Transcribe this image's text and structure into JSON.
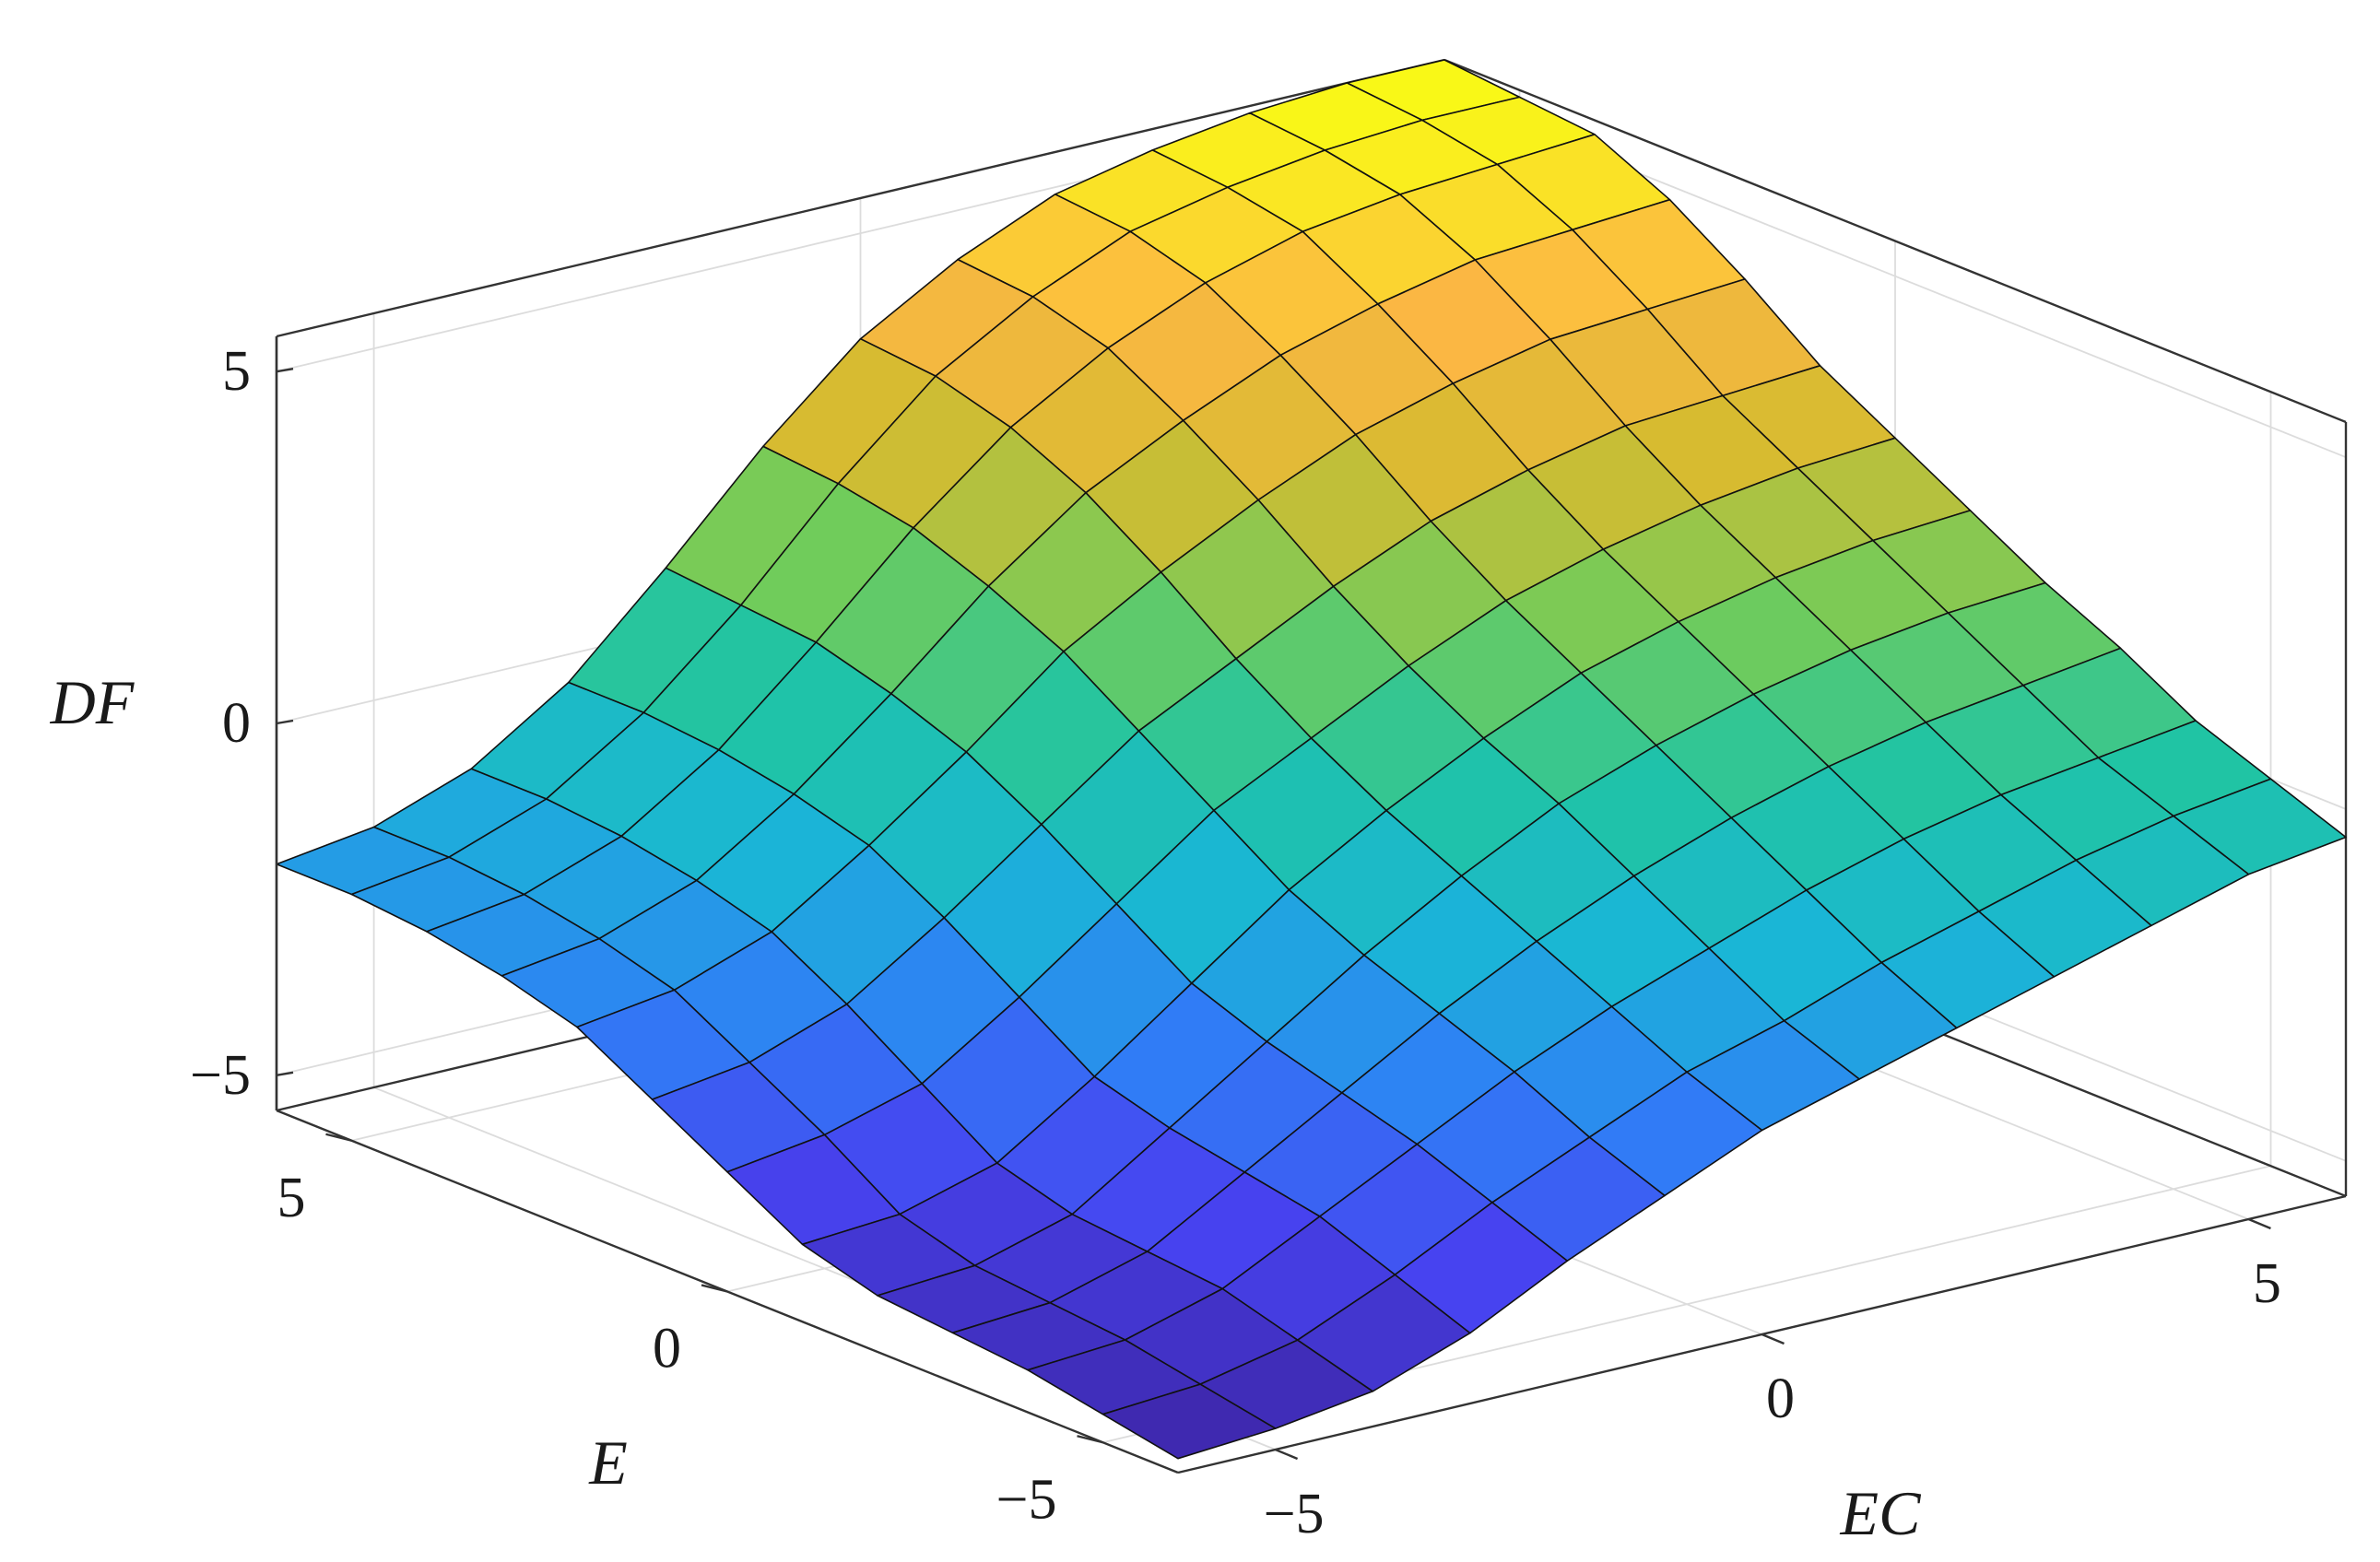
{
  "chart_data": {
    "type": "surface",
    "xlabel": "EC",
    "ylabel": "E",
    "zlabel": "DF",
    "xlim": [
      -6,
      6
    ],
    "ylim": [
      -6,
      6
    ],
    "zlim": [
      -5.5,
      5.5
    ],
    "x_ticks": [
      {
        "value": -5,
        "label": "−5"
      },
      {
        "value": 0,
        "label": "0"
      },
      {
        "value": 5,
        "label": "5"
      }
    ],
    "y_ticks": [
      {
        "value": -5,
        "label": "−5"
      },
      {
        "value": 0,
        "label": "0"
      },
      {
        "value": 5,
        "label": "5"
      }
    ],
    "z_ticks": [
      {
        "value": -5,
        "label": "−5"
      },
      {
        "value": 0,
        "label": "0"
      },
      {
        "value": 5,
        "label": "5"
      }
    ],
    "grid": true,
    "colormap": [
      "#3e26a8",
      "#4743f0",
      "#2f7ff6",
      "#1ab6d6",
      "#20c4a4",
      "#72cc5a",
      "#d6bb30",
      "#fcb744",
      "#f9fb15"
    ],
    "x": [
      -6,
      -5,
      -4,
      -3,
      -2,
      -1,
      0,
      1,
      2,
      3,
      4,
      5,
      6
    ],
    "y": [
      -6,
      -5,
      -4,
      -3,
      -2,
      -1,
      0,
      1,
      2,
      3,
      4,
      5,
      6
    ],
    "z_rows_by_E": [
      [
        -5.3,
        -5.2,
        -5.0,
        -4.5,
        -3.8,
        -3.2,
        -2.6,
        -2.2,
        -1.8,
        -1.4,
        -1.0,
        -0.6,
        -0.4
      ],
      [
        -5.1,
        -5.0,
        -4.7,
        -4.1,
        -3.4,
        -2.8,
        -2.2,
        -1.8,
        -1.3,
        -0.9,
        -0.5,
        -0.2,
        0.0
      ],
      [
        -4.9,
        -4.8,
        -4.4,
        -3.7,
        -3.0,
        -2.3,
        -1.7,
        -1.2,
        -0.7,
        -0.3,
        0.0,
        0.2,
        0.4
      ],
      [
        -4.8,
        -4.7,
        -4.3,
        -3.5,
        -2.7,
        -1.9,
        -1.2,
        -0.6,
        -0.1,
        0.3,
        0.6,
        0.8,
        1.0
      ],
      [
        -4.7,
        -4.6,
        -4.2,
        -3.3,
        -2.4,
        -1.5,
        -0.7,
        0.0,
        0.5,
        0.9,
        1.2,
        1.4,
        1.5
      ],
      [
        -4.4,
        -4.3,
        -3.9,
        -3.0,
        -2.0,
        -1.0,
        -0.2,
        0.5,
        1.1,
        1.5,
        1.8,
        2.0,
        2.1
      ],
      [
        -3.8,
        -3.6,
        -3.2,
        -2.3,
        -1.3,
        -0.3,
        0.4,
        1.1,
        1.7,
        2.1,
        2.4,
        2.6,
        2.7
      ],
      [
        -3.2,
        -3.0,
        -2.5,
        -1.6,
        -0.6,
        0.4,
        1.1,
        1.8,
        2.4,
        2.8,
        3.1,
        3.2,
        3.3
      ],
      [
        -2.6,
        -2.4,
        -1.9,
        -1.0,
        0.0,
        1.1,
        1.9,
        2.6,
        3.2,
        3.6,
        3.9,
        4.0,
        4.1
      ],
      [
        -2.3,
        -2.1,
        -1.6,
        -0.7,
        0.4,
        1.6,
        2.6,
        3.3,
        3.9,
        4.3,
        4.6,
        4.7,
        4.8
      ],
      [
        -2.1,
        -1.9,
        -1.4,
        -0.5,
        0.7,
        2.0,
        3.1,
        3.9,
        4.5,
        4.9,
        5.1,
        5.2,
        5.3
      ],
      [
        -2.0,
        -1.8,
        -1.3,
        -0.4,
        0.8,
        2.2,
        3.4,
        4.2,
        4.8,
        5.1,
        5.3,
        5.4,
        5.4
      ],
      [
        -2.0,
        -1.8,
        -1.3,
        -0.4,
        0.9,
        2.3,
        3.5,
        4.3,
        4.9,
        5.2,
        5.4,
        5.5,
        5.5
      ]
    ]
  }
}
